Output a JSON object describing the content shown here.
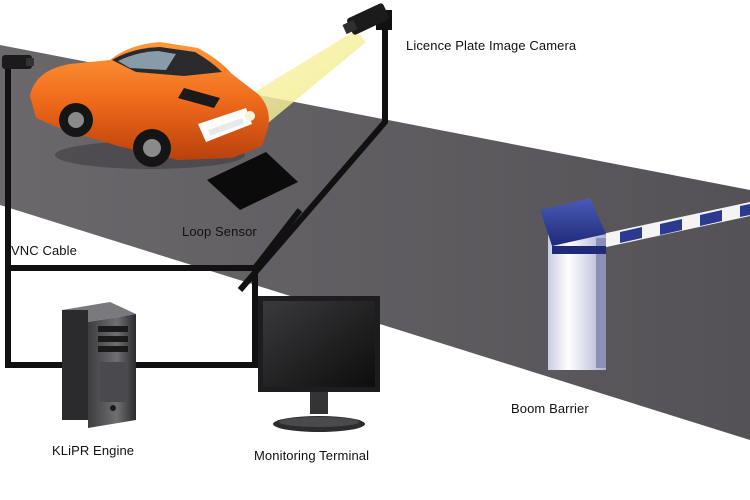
{
  "labels": {
    "camera": "Licence Plate Image Camera",
    "loop_sensor": "Loop Sensor",
    "vnc_cable": "VNC Cable",
    "klipr_engine": "KLiPR Engine",
    "monitoring_terminal": "Monitoring Terminal",
    "boom_barrier": "Boom Barrier"
  },
  "colors": {
    "road": "#5c5a5e",
    "cable": "#111111",
    "car_body": "#ef6a1b",
    "barrier": "#2b3a8f",
    "light_beam": "#f4ef9a"
  }
}
